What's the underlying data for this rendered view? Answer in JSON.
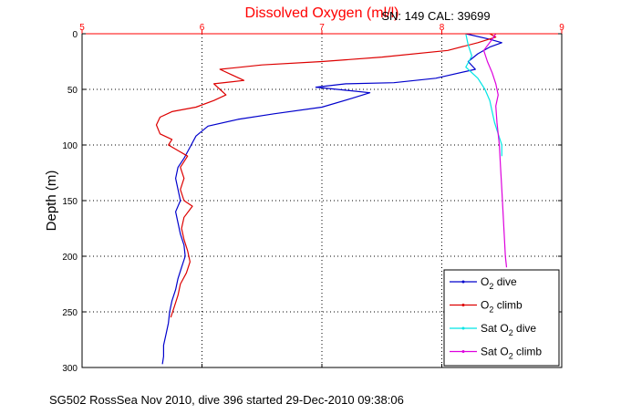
{
  "figure": {
    "title": "Dissolved Oxygen (ml/l)",
    "serial": "SN: 149  CAL: 39699",
    "footer": "SG502 RossSea Nov 2010, dive 396 started 29-Dec-2010 09:38:06"
  },
  "colors": {
    "title": "#ff0000",
    "top_axis": "#ff0000",
    "o2_dive": "#0000cc",
    "o2_climb": "#dd0000",
    "sat_dive": "#00e5e5",
    "sat_climb": "#dd00dd"
  },
  "chart_data": {
    "type": "line",
    "title": "Dissolved Oxygen (ml/l)",
    "xlabel": "",
    "ylabel": "Depth (m)",
    "xlim": [
      5,
      9
    ],
    "ylim": [
      0,
      300
    ],
    "y_reversed": true,
    "x_axis_position": "top",
    "xticks": [
      5,
      6,
      7,
      8,
      9
    ],
    "yticks": [
      0,
      50,
      100,
      150,
      200,
      250,
      300
    ],
    "grid": "dotted",
    "legend_position": "bottom-right",
    "legend": [
      {
        "series": "o2_dive",
        "label": "O",
        "sub": "2",
        "suffix": " dive"
      },
      {
        "series": "o2_climb",
        "label": "O",
        "sub": "2",
        "suffix": " climb"
      },
      {
        "series": "sat_dive",
        "label": "Sat O",
        "sub": "2",
        "suffix": " dive"
      },
      {
        "series": "sat_climb",
        "label": "Sat O",
        "sub": "2",
        "suffix": " climb"
      }
    ],
    "series": [
      {
        "key": "o2_dive",
        "name": "O2 dive",
        "points": [
          [
            8.2,
            0
          ],
          [
            8.4,
            5
          ],
          [
            8.5,
            8
          ],
          [
            8.4,
            12
          ],
          [
            8.3,
            18
          ],
          [
            8.22,
            25
          ],
          [
            8.28,
            32
          ],
          [
            7.95,
            40
          ],
          [
            7.6,
            44
          ],
          [
            7.2,
            45
          ],
          [
            6.95,
            48
          ],
          [
            7.4,
            53
          ],
          [
            7.25,
            58
          ],
          [
            7.0,
            66
          ],
          [
            6.6,
            72
          ],
          [
            6.3,
            77
          ],
          [
            6.05,
            83
          ],
          [
            5.95,
            92
          ],
          [
            5.9,
            102
          ],
          [
            5.85,
            112
          ],
          [
            5.8,
            120
          ],
          [
            5.78,
            130
          ],
          [
            5.8,
            140
          ],
          [
            5.82,
            150
          ],
          [
            5.78,
            160
          ],
          [
            5.8,
            170
          ],
          [
            5.82,
            180
          ],
          [
            5.85,
            190
          ],
          [
            5.86,
            200
          ],
          [
            5.83,
            210
          ],
          [
            5.8,
            220
          ],
          [
            5.78,
            230
          ],
          [
            5.75,
            240
          ],
          [
            5.73,
            250
          ],
          [
            5.72,
            260
          ],
          [
            5.7,
            270
          ],
          [
            5.68,
            280
          ],
          [
            5.68,
            290
          ],
          [
            5.67,
            297
          ]
        ]
      },
      {
        "key": "o2_climb",
        "name": "O2 climb",
        "points": [
          [
            8.4,
            0
          ],
          [
            8.45,
            3
          ],
          [
            8.3,
            8
          ],
          [
            8.05,
            15
          ],
          [
            7.5,
            21
          ],
          [
            7.0,
            25
          ],
          [
            6.5,
            28
          ],
          [
            6.15,
            32
          ],
          [
            6.35,
            42
          ],
          [
            6.1,
            45
          ],
          [
            6.15,
            50
          ],
          [
            6.2,
            55
          ],
          [
            6.1,
            60
          ],
          [
            5.95,
            66
          ],
          [
            5.75,
            70
          ],
          [
            5.65,
            75
          ],
          [
            5.62,
            82
          ],
          [
            5.65,
            90
          ],
          [
            5.75,
            95
          ],
          [
            5.72,
            100
          ],
          [
            5.8,
            105
          ],
          [
            5.88,
            110
          ],
          [
            5.82,
            120
          ],
          [
            5.85,
            130
          ],
          [
            5.82,
            140
          ],
          [
            5.85,
            150
          ],
          [
            5.92,
            155
          ],
          [
            5.85,
            165
          ],
          [
            5.83,
            175
          ],
          [
            5.85,
            185
          ],
          [
            5.88,
            195
          ],
          [
            5.9,
            205
          ],
          [
            5.87,
            215
          ],
          [
            5.82,
            225
          ],
          [
            5.8,
            235
          ],
          [
            5.77,
            245
          ],
          [
            5.74,
            255
          ]
        ]
      },
      {
        "key": "sat_dive",
        "name": "Sat O2 dive",
        "points": [
          [
            8.2,
            0
          ],
          [
            8.22,
            10
          ],
          [
            8.25,
            20
          ],
          [
            8.2,
            30
          ],
          [
            8.3,
            40
          ],
          [
            8.36,
            50
          ],
          [
            8.4,
            60
          ],
          [
            8.42,
            70
          ],
          [
            8.44,
            80
          ],
          [
            8.47,
            90
          ],
          [
            8.5,
            100
          ],
          [
            8.5,
            110
          ]
        ]
      },
      {
        "key": "sat_climb",
        "name": "Sat O2 climb",
        "points": [
          [
            8.45,
            0
          ],
          [
            8.42,
            5
          ],
          [
            8.35,
            15
          ],
          [
            8.38,
            25
          ],
          [
            8.42,
            35
          ],
          [
            8.45,
            45
          ],
          [
            8.47,
            55
          ],
          [
            8.45,
            65
          ],
          [
            8.46,
            80
          ],
          [
            8.47,
            90
          ],
          [
            8.48,
            100
          ],
          [
            8.49,
            120
          ],
          [
            8.5,
            140
          ],
          [
            8.51,
            160
          ],
          [
            8.52,
            180
          ],
          [
            8.53,
            200
          ],
          [
            8.54,
            210
          ]
        ]
      }
    ]
  }
}
